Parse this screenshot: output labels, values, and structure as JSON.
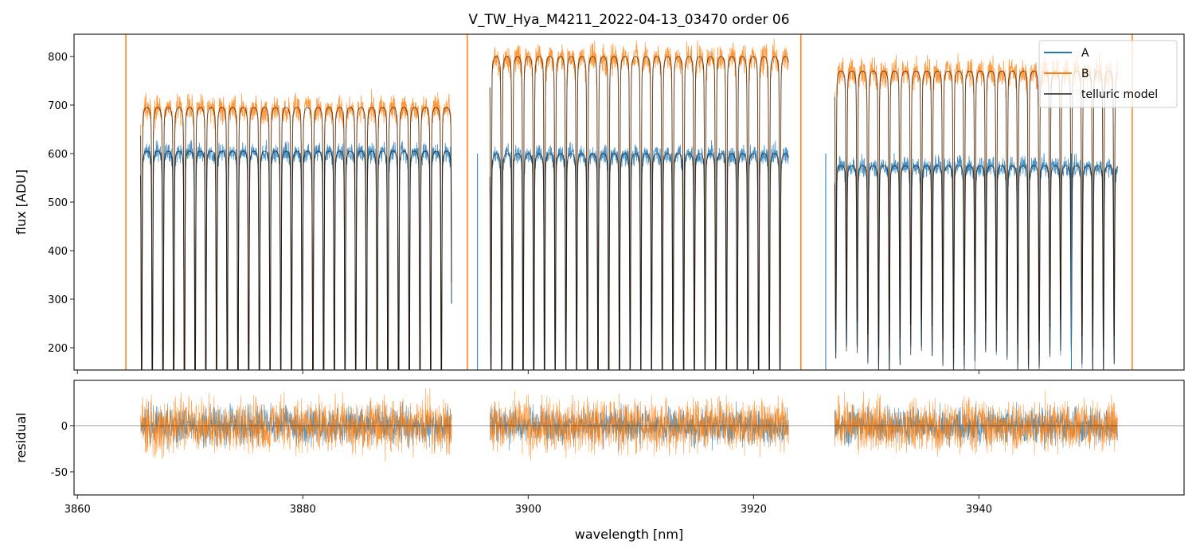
{
  "chart_data": [
    {
      "type": "line",
      "title": "V_TW_Hya_M4211_2022-04-13_03470  order 06",
      "xlabel": "",
      "ylabel": "flux [ADU]",
      "xlim": [
        3859.7,
        3958.2
      ],
      "ylim": [
        154,
        846
      ],
      "yticks": [
        200,
        300,
        400,
        500,
        600,
        700,
        800
      ],
      "legend": {
        "placement": "top-right",
        "entries": [
          "A",
          "B",
          "telluric model"
        ]
      },
      "series_colors": {
        "A": "#1f77b4",
        "B": "#ff7f0e",
        "telluric model": "#333333"
      },
      "telluric_line_spacing_nm": 0.95,
      "segments": [
        {
          "x_start": 3865.6,
          "x_end": 3893.2,
          "A_continuum": 605,
          "B_continuum": 695,
          "line_min_flux": 100
        },
        {
          "x_start": 3896.6,
          "x_end": 3923.1,
          "A_continuum": 600,
          "B_continuum": 800,
          "line_min_flux": 150
        },
        {
          "x_start": 3927.2,
          "x_end": 3952.3,
          "A_continuum": 575,
          "B_continuum": 770,
          "line_min_flux": 250
        }
      ],
      "spikes_B": [
        3864.3,
        3894.6,
        3924.2,
        3953.6
      ],
      "spikes_A": [
        3895.5,
        3926.4,
        3948.2
      ]
    },
    {
      "type": "line",
      "xlabel": "wavelength [nm]",
      "ylabel": "residual",
      "xlim": [
        3859.7,
        3958.2
      ],
      "ylim": [
        -75,
        49
      ],
      "xticks": [
        3860,
        3880,
        3900,
        3920,
        3940
      ],
      "yticks": [
        -50,
        0
      ],
      "noise_amplitude": 20,
      "segments": [
        [
          3865.6,
          3893.2
        ],
        [
          3896.6,
          3923.1
        ],
        [
          3927.2,
          3952.3
        ]
      ]
    }
  ]
}
